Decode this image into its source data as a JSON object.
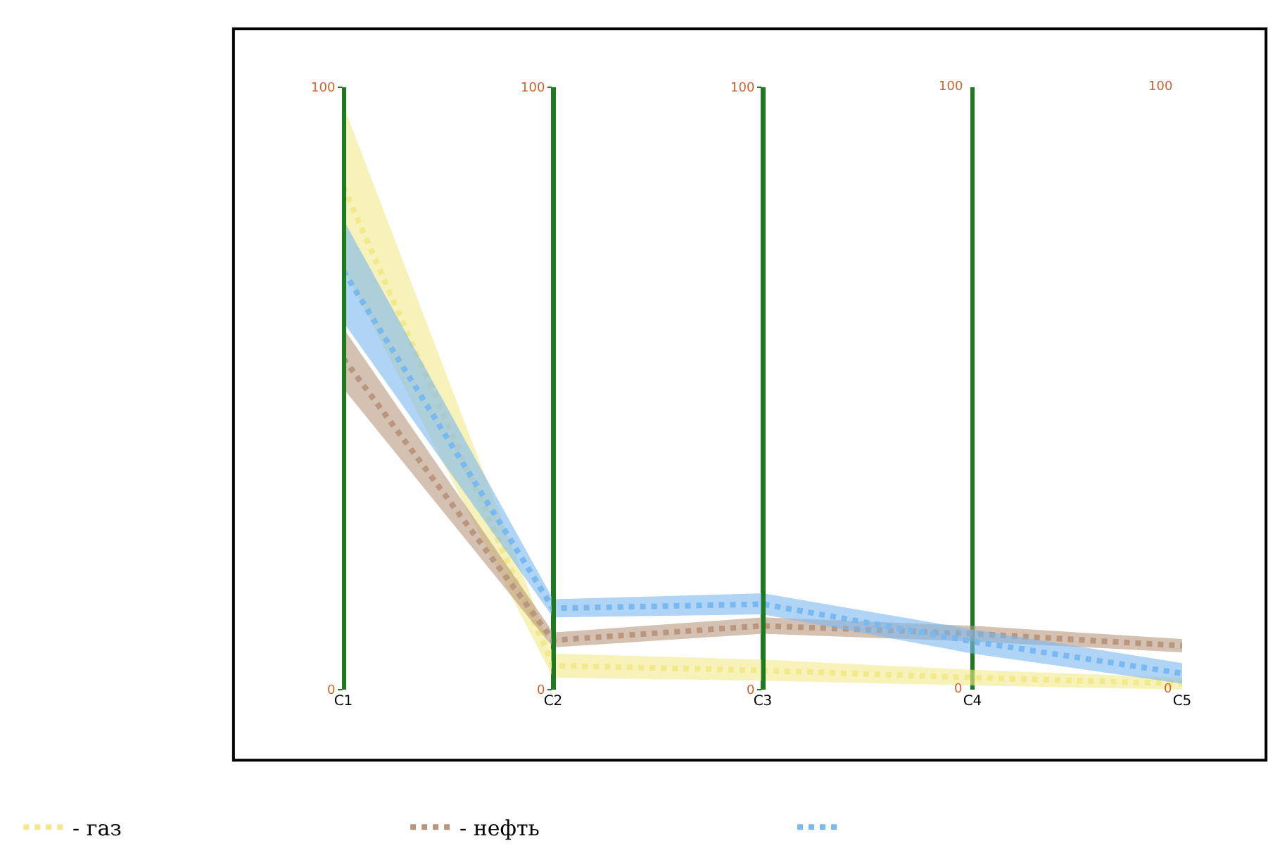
{
  "chart_data": {
    "type": "line",
    "categories": [
      "C1",
      "C2",
      "C3",
      "C4",
      "C5"
    ],
    "ylim": [
      0,
      100
    ],
    "yticks": [
      0,
      100
    ],
    "y2lim": [
      0,
      100
    ],
    "y2ticks": [
      0,
      100
    ],
    "y3lim": [
      0,
      100
    ],
    "y3ticks": [
      0,
      100
    ],
    "annotations": [
      "100",
      "0",
      "100",
      "0"
    ],
    "grid": "x",
    "legend": "bottom",
    "line_style": "dotted",
    "marker": "none",
    "series": [
      {
        "name": "- газ",
        "color": "#f2e98c",
        "values": [
          83.5,
          4,
          3.2,
          2,
          1
        ],
        "lower": [
          70,
          2,
          1.5,
          0.7,
          0
        ],
        "upper": [
          97,
          6,
          5,
          3.3,
          2
        ]
      },
      {
        "name": "- нефть",
        "color": "#b8977e",
        "values": [
          55,
          8.2,
          10.6,
          9.3,
          7.3
        ],
        "lower": [
          50,
          7,
          9.3,
          8,
          6.2
        ],
        "upper": [
          60,
          9.5,
          12,
          10.6,
          8.4
        ]
      },
      {
        "color": "#7ab8f0",
        "values": [
          69.5,
          13.5,
          14.2,
          8,
          2.7
        ],
        "lower": [
          61,
          12,
          12.5,
          6,
          1
        ],
        "upper": [
          78,
          15,
          16,
          10,
          4.4
        ]
      }
    ]
  }
}
